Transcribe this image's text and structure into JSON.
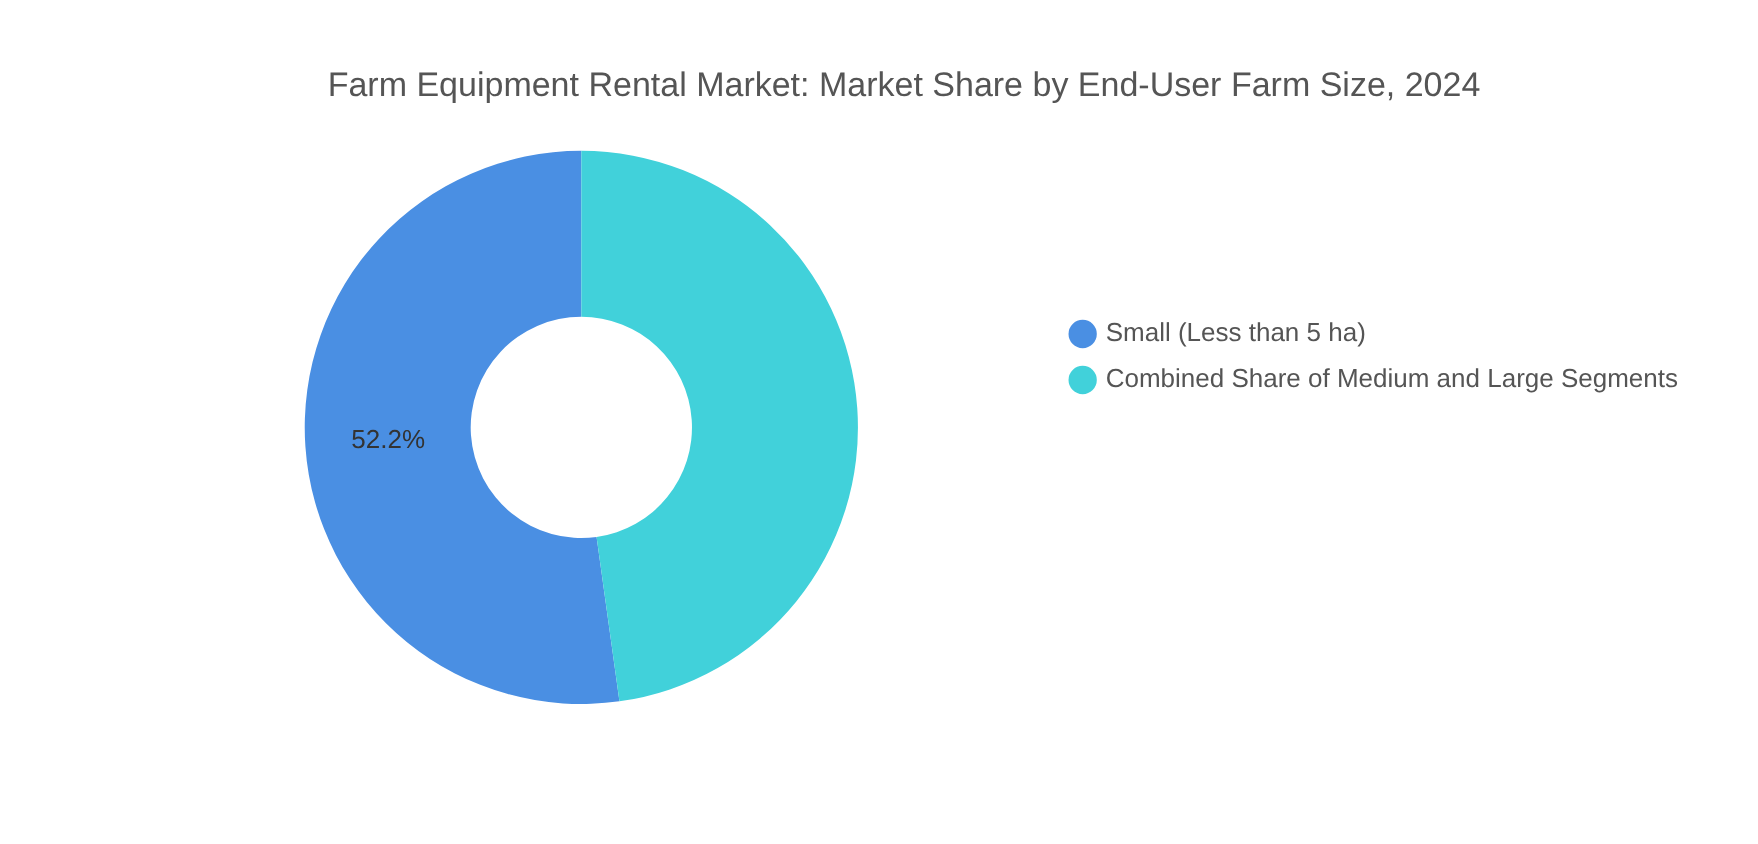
{
  "chart_data": {
    "type": "donut",
    "title": "Farm Equipment Rental Market: Market Share by End-User Farm Size, 2024",
    "categories": [
      "Small (Less than 5 ha)",
      "Combined Share of Medium and Large Segments"
    ],
    "values": [
      52.2,
      47.8
    ],
    "colors": [
      "#4a8fe3",
      "#41d1da"
    ],
    "value_labels": [
      "52.2%",
      null
    ],
    "legend": "right"
  }
}
